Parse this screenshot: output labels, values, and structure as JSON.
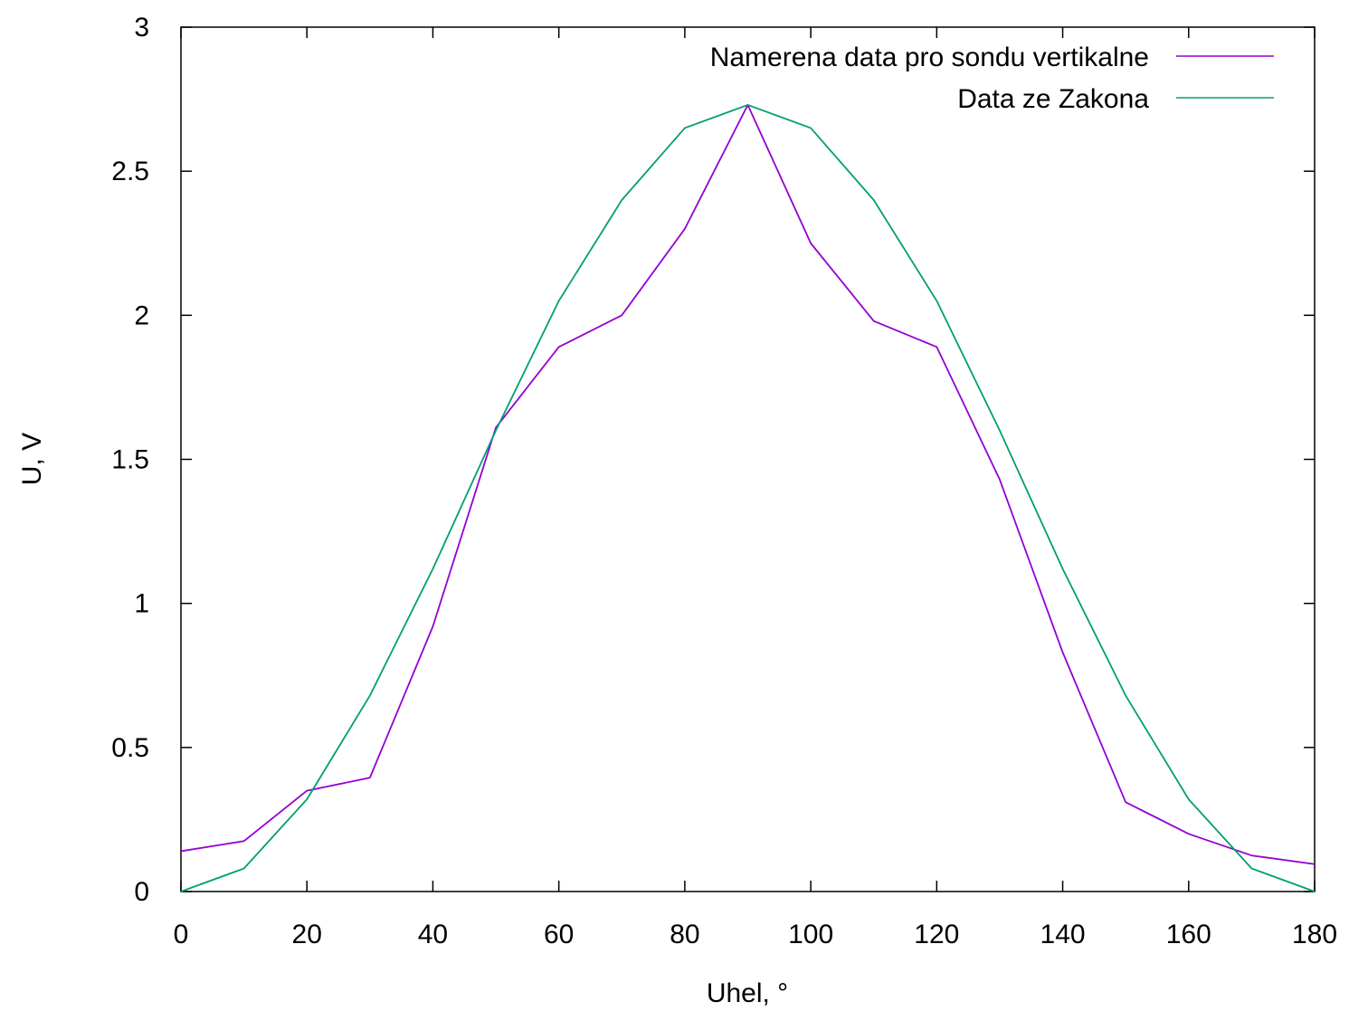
{
  "chart_data": {
    "type": "line",
    "title": "",
    "xlabel": "Uhel, °",
    "ylabel": "U, V",
    "xlim": [
      0,
      180
    ],
    "ylim": [
      0,
      3
    ],
    "xticks": [
      0,
      20,
      40,
      60,
      80,
      100,
      120,
      140,
      160,
      180
    ],
    "yticks": [
      0,
      0.5,
      1,
      1.5,
      2,
      2.5,
      3
    ],
    "xtick_labels": [
      "0",
      "20",
      "40",
      "60",
      "80",
      "100",
      "120",
      "140",
      "160",
      "180"
    ],
    "ytick_labels": [
      "0",
      "0.5",
      "1",
      "1.5",
      "2",
      "2.5",
      "3"
    ],
    "grid": false,
    "legend_position": "top-right",
    "x": [
      0,
      10,
      20,
      30,
      40,
      50,
      60,
      70,
      80,
      90,
      100,
      110,
      120,
      130,
      140,
      150,
      160,
      170,
      180
    ],
    "series": [
      {
        "name": "Namerena data pro sondu vertikalne",
        "color": "#9400d3",
        "values": [
          0.14,
          0.175,
          0.35,
          0.395,
          0.92,
          1.61,
          1.89,
          2.0,
          2.3,
          2.73,
          2.25,
          1.98,
          1.89,
          1.43,
          0.83,
          0.31,
          0.2,
          0.125,
          0.095
        ]
      },
      {
        "name": "Data ze Zakona",
        "color": "#009e73",
        "values": [
          0.0,
          0.08,
          0.32,
          0.68,
          1.12,
          1.6,
          2.05,
          2.4,
          2.65,
          2.73,
          2.65,
          2.4,
          2.05,
          1.6,
          1.12,
          0.68,
          0.32,
          0.08,
          0.0
        ]
      }
    ]
  }
}
